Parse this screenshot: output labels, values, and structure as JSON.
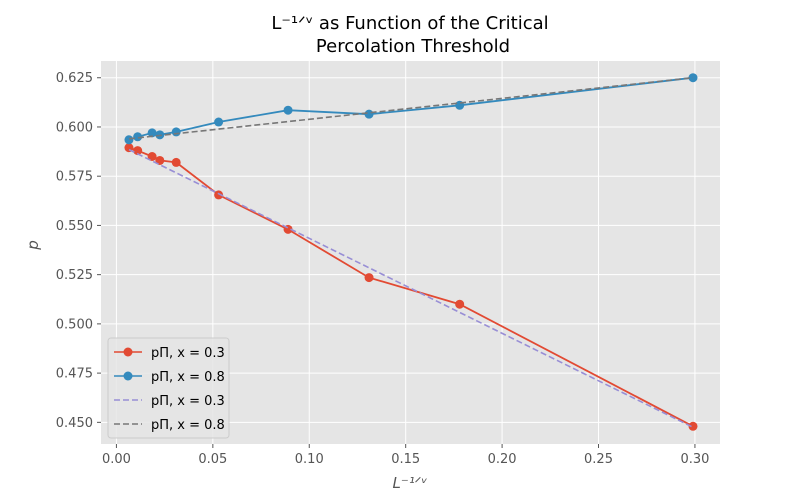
{
  "chart_data": {
    "type": "line",
    "title_line1": "L⁻¹ᐟᵛ as Function of the Critical",
    "title_line2": "Percolation Threshold",
    "xlabel": "L⁻¹ᐟᵛ",
    "ylabel": "p",
    "xlim": [
      -0.008,
      0.313
    ],
    "ylim": [
      0.439,
      0.6335
    ],
    "xticks": [
      0.0,
      0.05,
      0.1,
      0.15,
      0.2,
      0.25,
      0.3
    ],
    "xtick_labels": [
      "0.00",
      "0.05",
      "0.10",
      "0.15",
      "0.20",
      "0.25",
      "0.30"
    ],
    "yticks": [
      0.45,
      0.475,
      0.5,
      0.525,
      0.55,
      0.575,
      0.6,
      0.625
    ],
    "ytick_labels": [
      "0.450",
      "0.475",
      "0.500",
      "0.525",
      "0.550",
      "0.575",
      "0.600",
      "0.625"
    ],
    "grid": true,
    "legend_position": "lower-left",
    "colors": {
      "background": "#e5e5e5",
      "grid": "#ffffff",
      "series_red": "#e24a33",
      "series_blue": "#348abd",
      "fit_purple": "#988ed5",
      "fit_gray": "#777777"
    },
    "series": [
      {
        "name": "pΠ, x = 0.3",
        "style": "line-marker",
        "color": "#e24a33",
        "x": [
          0.0065,
          0.011,
          0.0185,
          0.0225,
          0.031,
          0.053,
          0.089,
          0.131,
          0.178,
          0.299
        ],
        "y": [
          0.5895,
          0.588,
          0.585,
          0.583,
          0.582,
          0.5655,
          0.548,
          0.5235,
          0.51,
          0.448
        ]
      },
      {
        "name": "pΠ, x = 0.8",
        "style": "line-marker",
        "color": "#348abd",
        "x": [
          0.0065,
          0.011,
          0.0185,
          0.0225,
          0.031,
          0.053,
          0.089,
          0.131,
          0.178,
          0.299
        ],
        "y": [
          0.5935,
          0.595,
          0.597,
          0.596,
          0.5975,
          0.6025,
          0.6085,
          0.6065,
          0.611,
          0.625
        ]
      },
      {
        "name": "pΠ, x = 0.3",
        "style": "dashed",
        "color": "#988ed5",
        "x": [
          0.0065,
          0.299
        ],
        "y": [
          0.5885,
          0.4475
        ]
      },
      {
        "name": "pΠ, x = 0.8",
        "style": "dashed",
        "color": "#777777",
        "x": [
          0.0065,
          0.299
        ],
        "y": [
          0.594,
          0.625
        ]
      }
    ]
  }
}
